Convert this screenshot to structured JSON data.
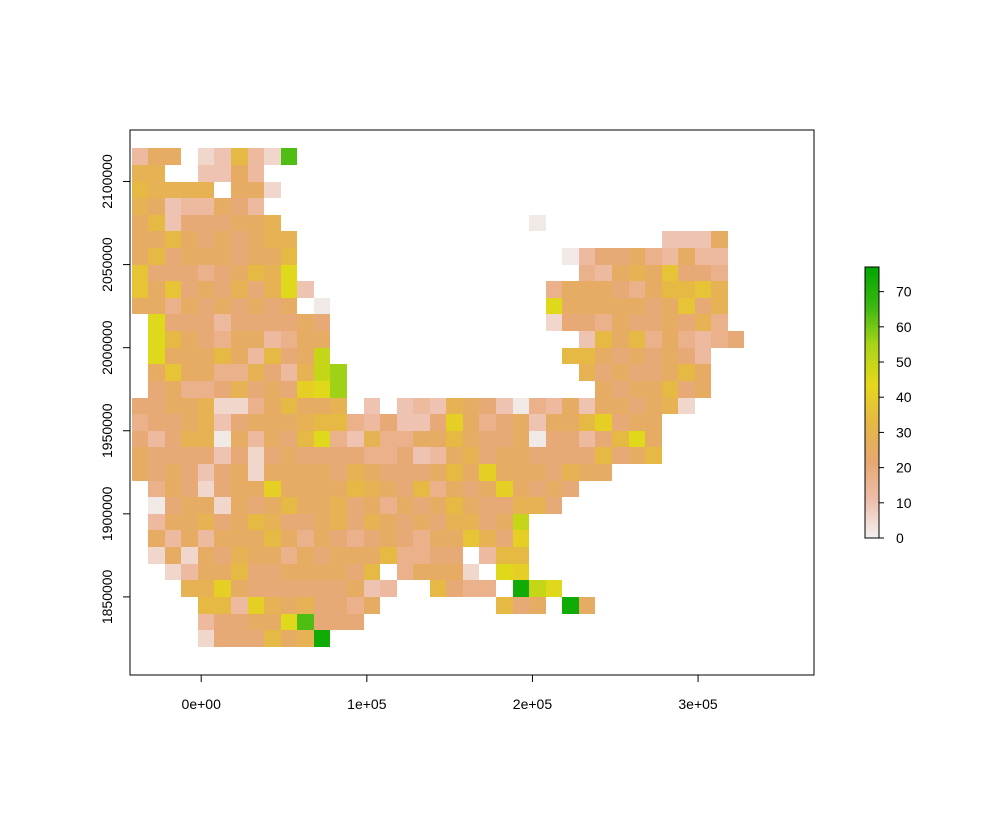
{
  "chart_data": {
    "type": "heatmap",
    "title": "",
    "xlabel": "",
    "ylabel": "",
    "xlim": [
      -43000,
      370000
    ],
    "ylim": [
      1803000,
      2131000
    ],
    "x_ticks": [
      {
        "value": 0,
        "label": "0e+00"
      },
      {
        "value": 100000,
        "label": "1e+05"
      },
      {
        "value": 200000,
        "label": "2e+05"
      },
      {
        "value": 300000,
        "label": "3e+05"
      }
    ],
    "y_ticks": [
      {
        "value": 1850000,
        "label": "1850000"
      },
      {
        "value": 1900000,
        "label": "1900000"
      },
      {
        "value": 1950000,
        "label": "1950000"
      },
      {
        "value": 2000000,
        "label": "2000000"
      },
      {
        "value": 2050000,
        "label": "2050000"
      },
      {
        "value": 2100000,
        "label": "2100000"
      }
    ],
    "cell_size": 10000,
    "grid_origin": {
      "x_min": -42000,
      "y_max": 2120000
    },
    "nodata_symbol": ".",
    "value_codes": {
      "a": 2,
      "b": 6,
      "c": 10,
      "d": 13,
      "e": 17,
      "f": 21,
      "g": 25,
      "h": 29,
      "i": 33,
      "j": 37,
      "k": 41,
      "l": 45,
      "m": 50,
      "n": 56,
      "o": 64,
      "p": 74
    },
    "rows": [
      "dgg.bcidbo..........................",
      "hh..ccgd............................",
      "ihhhh.ggb...........................",
      "hgcddgfd............................",
      "gicfffggh...............a...........",
      "ggigfgfghh......................cccg..",
      "gifgggfggi................adffgedgdd",
      "jfffefgihl.................edghgjffe",
      "jgjfgfhfhlc..............egggfegiijh",
      "ggegfgfgfg.a.............lgggggfgjfh",
      ".lfffdffffgf.............bffegffgfhe",
      ".ligfeggdegg...............cigiegedef",
      ".lgggigdifgm..............iigfgfgfd",
      ".gjggeehfdhmn..............hfgffgig",
      ".fgeefhfgfkln...............gfggifg",
      "ffgghbbegiggh.c.cdchgfcaedgcggfghb",
      "effghcfggghiiedfccfkgefgcggikfgg",
      "fdfhhagdgfilecheeggigffgaffdfilg",
      "gffffcfbfgffffeefcdghfggffffifgi",
      "gfgfcfgbggggfhgfffgigkgggfhgg",
      ".egfbfggkggggihgfiegfgkgfgf",
      ".afggbgfgigghfgegfgigffhhf",
      ".dgghfgihffghfhgfgfhhfgm",
      ".gdgdgggigegfefgfeggjhfk",
      ".bgbgfhggegfgggieeff.dii",
      "..bdggiffggggfi.egggb.lk",
      "...hhkgffffffgcd..ifee.pml",
      "....iidkhghffeg.......ifg.pg",
      "....dffgglofff",
      "....bfffighp",
      "....................."
    ]
  },
  "legend": {
    "ticks": [
      {
        "value": 0,
        "label": "0"
      },
      {
        "value": 10,
        "label": "10"
      },
      {
        "value": 20,
        "label": "20"
      },
      {
        "value": 30,
        "label": "30"
      },
      {
        "value": 40,
        "label": "40"
      },
      {
        "value": 50,
        "label": "50"
      },
      {
        "value": 60,
        "label": "60"
      },
      {
        "value": 70,
        "label": "70"
      }
    ],
    "range": [
      0,
      77
    ],
    "palette": [
      "#F2F2F2",
      "#EEBEAB",
      "#E6A770",
      "#E6B844",
      "#E6D81A",
      "#A9D418",
      "#3BB812",
      "#00A600"
    ]
  }
}
